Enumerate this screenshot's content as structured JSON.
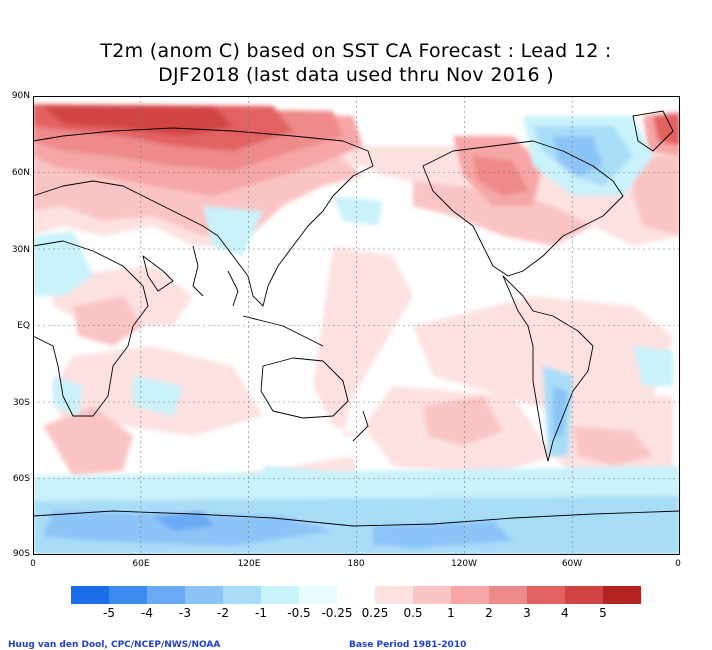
{
  "title_line1": "T2m (anom C) based on SST CA Forecast : Lead 12 :",
  "title_line2": "DJF2018 (last data used thru Nov 2016 )",
  "lat_ticks": [
    "90N",
    "60N",
    "30N",
    "EQ",
    "30S",
    "60S",
    "90S"
  ],
  "lon_ticks": [
    "0",
    "60E",
    "120E",
    "180",
    "120W",
    "60W",
    "0"
  ],
  "legend": {
    "colors": [
      "#1a6ee8",
      "#3c8cf0",
      "#6aaaf5",
      "#8cc4f8",
      "#a8ddf8",
      "#c9f2fa",
      "#e8fcfd",
      "#ffffff",
      "#fde1e1",
      "#fbc4c4",
      "#f6a6a6",
      "#ee8a8a",
      "#e26262",
      "#d24444",
      "#b42222"
    ],
    "labels": [
      "-5",
      "-4",
      "-3",
      "-2",
      "-1",
      "-0.5",
      "-0.25",
      "0.25",
      "0.5",
      "1",
      "2",
      "3",
      "4",
      "5"
    ]
  },
  "credit_left": "Huug van den Dool, CPC/NCEP/NWS/NOAA",
  "credit_right": "Base Period 1981-2010"
}
